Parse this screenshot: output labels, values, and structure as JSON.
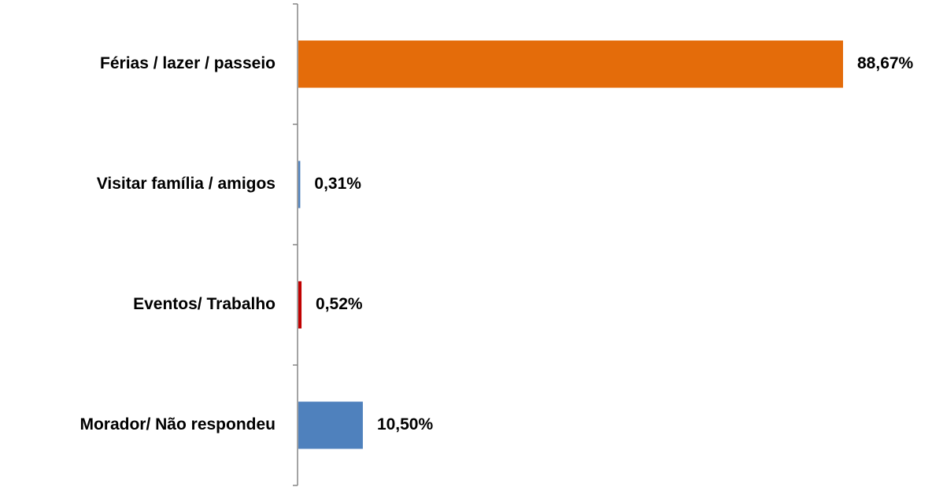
{
  "chart_data": {
    "type": "barh",
    "categories": [
      "Férias / lazer / passeio",
      "Visitar família / amigos",
      "Eventos/ Trabalho",
      "Morador/ Não respondeu"
    ],
    "values": [
      88.67,
      0.31,
      0.52,
      10.5
    ],
    "value_labels": [
      "88,67%",
      "0,31%",
      "0,52%",
      "10,50%"
    ],
    "colors": [
      "#e46c0a",
      "#4f81bd",
      "#c00000",
      "#4f81bd"
    ]
  }
}
